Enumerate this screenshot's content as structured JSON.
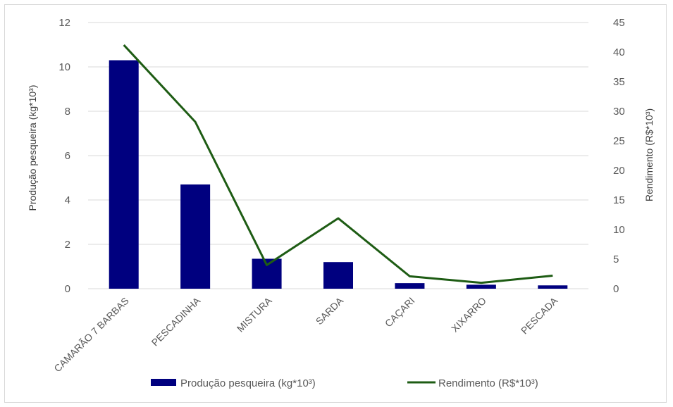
{
  "chart_data": {
    "type": "bar+line",
    "categories": [
      "CAMARÃO 7 BARBAS",
      "PESCADINHA",
      "MISTURA",
      "SARDA",
      "CAÇARI",
      "XIXARRO",
      "PESCADA"
    ],
    "series": [
      {
        "name": "Produção pesqueira (kg*10³)",
        "kind": "bar",
        "axis": "left",
        "color": "#00007f",
        "values": [
          10.3,
          4.7,
          1.35,
          1.2,
          0.25,
          0.18,
          0.15
        ]
      },
      {
        "name": "Rendimento (R$*10³)",
        "kind": "line",
        "axis": "right",
        "color": "#1e5c14",
        "values": [
          41.2,
          28.2,
          4.0,
          11.9,
          2.1,
          1.0,
          2.2
        ]
      }
    ],
    "ylabel": "Produção pesqueira (kg*10³)",
    "y2label": "Rendimento (R$*10³)",
    "ylim": [
      0,
      12
    ],
    "y2lim": [
      0,
      45
    ],
    "yticks": [
      "0",
      "2",
      "4",
      "6",
      "8",
      "10",
      "12"
    ],
    "y2ticks": [
      "0",
      "5",
      "10",
      "15",
      "20",
      "25",
      "30",
      "35",
      "40",
      "45"
    ],
    "grid": true,
    "legend": "bottom"
  }
}
